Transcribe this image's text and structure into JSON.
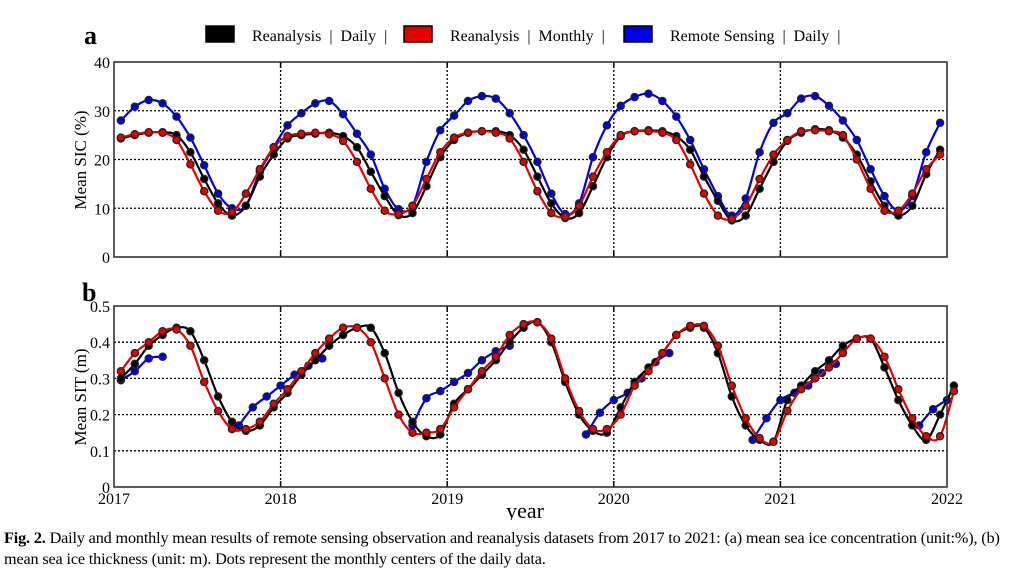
{
  "figure": {
    "legend": [
      {
        "label": "Reanalysis  |  Daily  |",
        "color": "#000000"
      },
      {
        "label": "Reanalysis  |  Monthly  |",
        "color": "#e60000"
      },
      {
        "label": "Remote Sensing  |  Daily  |",
        "color": "#0000e6"
      }
    ],
    "xlabel": "year",
    "caption_label": "Fig. 2.",
    "caption_text": " Daily and monthly mean results of remote sensing observation and reanalysis datasets from 2017 to 2021: (a) mean sea ice concentration (unit:%), (b) mean sea ice thickness (unit: m). Dots represent the monthly centers of the daily data."
  },
  "chart_data": [
    {
      "type": "line",
      "panel": "a",
      "title": "a",
      "xlabel": "",
      "ylabel": "Mean SIC (%)",
      "xlim": [
        2017,
        2022
      ],
      "ylim": [
        0,
        40
      ],
      "yticks": [
        0,
        10,
        20,
        30,
        40
      ],
      "xticks": [
        2017,
        2018,
        2019,
        2020,
        2021,
        2022
      ],
      "xtick_labels_shown": false,
      "grid": true,
      "legend_position": "top",
      "x_unit": "month index (0 = Jan 2017, mid-month centers)",
      "series": [
        {
          "name": "Reanalysis | Daily",
          "color": "#000000",
          "values": [
            24.3,
            25.0,
            25.5,
            25.6,
            25.0,
            21.5,
            16.0,
            11.0,
            8.5,
            10.5,
            16.5,
            21.0,
            24.3,
            25.0,
            25.3,
            25.5,
            24.8,
            22.5,
            17.5,
            12.5,
            8.6,
            9.0,
            14.5,
            20.5,
            24.0,
            25.5,
            25.8,
            25.8,
            25.0,
            22.0,
            16.5,
            11.0,
            8.0,
            9.0,
            14.5,
            20.5,
            24.8,
            25.8,
            26.0,
            25.8,
            24.8,
            22.0,
            16.5,
            11.5,
            7.5,
            8.5,
            14.0,
            19.5,
            23.8,
            25.5,
            26.2,
            26.0,
            24.5,
            21.0,
            15.5,
            10.5,
            8.5,
            10.5,
            17.0,
            22.0
          ]
        },
        {
          "name": "Reanalysis | Monthly",
          "color": "#e60000",
          "values": [
            24.5,
            25.2,
            25.6,
            25.5,
            24.0,
            19.0,
            13.5,
            9.5,
            9.2,
            13.0,
            18.0,
            22.5,
            24.8,
            25.3,
            25.5,
            25.2,
            23.8,
            19.5,
            14.0,
            9.5,
            8.8,
            10.5,
            16.0,
            21.5,
            24.5,
            25.5,
            25.8,
            25.5,
            24.3,
            19.5,
            13.5,
            9.0,
            8.2,
            10.5,
            16.5,
            21.5,
            25.0,
            25.8,
            25.8,
            25.5,
            24.0,
            19.0,
            13.0,
            8.5,
            7.8,
            10.5,
            16.0,
            21.0,
            24.0,
            25.8,
            26.0,
            25.8,
            25.0,
            20.0,
            14.0,
            9.5,
            9.5,
            13.0,
            18.0,
            21.0
          ]
        },
        {
          "name": "Remote Sensing | Daily",
          "color": "#0000e6",
          "values": [
            28.0,
            30.8,
            32.2,
            31.5,
            28.8,
            24.5,
            18.8,
            13.0,
            10.0,
            10.5,
            17.5,
            22.5,
            27.0,
            29.5,
            31.5,
            32.0,
            29.3,
            25.3,
            21.0,
            14.0,
            9.8,
            10.5,
            19.5,
            26.0,
            29.0,
            32.0,
            33.0,
            32.5,
            29.5,
            25.0,
            19.5,
            13.0,
            8.8,
            11.0,
            20.5,
            27.0,
            31.0,
            32.8,
            33.5,
            32.0,
            28.8,
            24.0,
            18.0,
            12.5,
            8.5,
            12.0,
            21.5,
            27.5,
            29.5,
            32.5,
            33.0,
            31.0,
            28.0,
            24.0,
            18.0,
            12.5,
            9.5,
            12.5,
            21.5,
            27.5
          ]
        }
      ]
    },
    {
      "type": "line",
      "panel": "b",
      "title": "b",
      "xlabel": "year",
      "ylabel": "Mean SIT (m)",
      "xlim": [
        2017,
        2022
      ],
      "ylim": [
        0,
        0.5
      ],
      "yticks": [
        0,
        0.1,
        0.2,
        0.3,
        0.4,
        0.5
      ],
      "xticks": [
        2017,
        2018,
        2019,
        2020,
        2021,
        2022
      ],
      "xtick_labels": [
        "2017",
        "2018",
        "2019",
        "2020",
        "2021",
        "2022"
      ],
      "grid": true,
      "x_unit": "month index (0 = Jan 2017, mid-month centers)",
      "series": [
        {
          "name": "Reanalysis | Daily",
          "color": "#000000",
          "values": [
            0.3,
            0.34,
            0.39,
            0.42,
            0.44,
            0.43,
            0.35,
            0.25,
            0.18,
            0.155,
            0.17,
            0.22,
            0.26,
            0.31,
            0.35,
            0.39,
            0.42,
            0.44,
            0.44,
            0.37,
            0.26,
            0.18,
            0.14,
            0.145,
            0.23,
            0.27,
            0.31,
            0.35,
            0.4,
            0.44,
            0.455,
            0.4,
            0.29,
            0.2,
            0.155,
            0.15,
            0.22,
            0.29,
            0.33,
            0.37,
            0.42,
            0.44,
            0.44,
            0.37,
            0.25,
            0.17,
            0.13,
            0.125,
            0.24,
            0.28,
            0.32,
            0.35,
            0.39,
            0.41,
            0.41,
            0.33,
            0.24,
            0.17,
            0.13,
            0.2,
            0.28
          ]
        },
        {
          "name": "Reanalysis | Monthly",
          "color": "#e60000",
          "values": [
            0.32,
            0.37,
            0.4,
            0.43,
            0.435,
            0.39,
            0.29,
            0.21,
            0.16,
            0.16,
            0.18,
            0.23,
            0.27,
            0.32,
            0.37,
            0.41,
            0.44,
            0.44,
            0.4,
            0.3,
            0.2,
            0.15,
            0.15,
            0.16,
            0.22,
            0.27,
            0.32,
            0.36,
            0.42,
            0.45,
            0.455,
            0.41,
            0.3,
            0.21,
            0.16,
            0.16,
            0.2,
            0.28,
            0.32,
            0.37,
            0.42,
            0.445,
            0.445,
            0.39,
            0.28,
            0.19,
            0.135,
            0.125,
            0.21,
            0.27,
            0.3,
            0.33,
            0.37,
            0.41,
            0.41,
            0.36,
            0.27,
            0.19,
            0.14,
            0.14,
            0.265
          ]
        },
        {
          "name": "Remote Sensing | Daily",
          "color": "#0000e6",
          "segments": [
            {
              "start_month": 0,
              "values": [
                0.295,
                0.32,
                0.355,
                0.36
              ]
            },
            {
              "start_month": 8.5,
              "values": [
                0.17,
                0.22,
                0.25,
                0.28,
                0.31,
                0.335,
                0.355
              ]
            },
            {
              "start_month": 21,
              "values": [
                0.17,
                0.245,
                0.265,
                0.29,
                0.315,
                0.35,
                0.375,
                0.39
              ]
            },
            {
              "start_month": 33.5,
              "values": [
                0.145,
                0.205,
                0.24,
                0.26,
                0.3,
                0.345,
                0.37
              ]
            },
            {
              "start_month": 45.5,
              "values": [
                0.13,
                0.19,
                0.24,
                0.26,
                0.28,
                0.315,
                0.34
              ]
            },
            {
              "start_month": 57.5,
              "values": [
                0.17,
                0.215,
                0.24
              ]
            }
          ]
        }
      ]
    }
  ]
}
